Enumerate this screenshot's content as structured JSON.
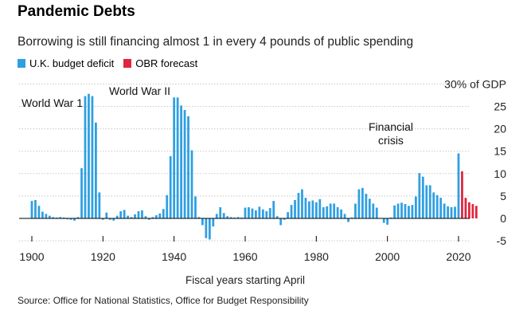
{
  "title": "Pandemic Debts",
  "subtitle": "Borrowing is still financing almost 1 in every 4 pounds of public spending",
  "source": "Source: Office for National Statistics, Office for Budget Responsibility",
  "legend": [
    {
      "label": "U.K. budget deficit",
      "color": "#2f9fe2"
    },
    {
      "label": "OBR forecast",
      "color": "#e0253e"
    }
  ],
  "chart_data": {
    "type": "bar",
    "title": "Pandemic Debts",
    "xlabel": "Fiscal years starting April",
    "ylabel": "30% of GDP",
    "ylim": [
      -5,
      30
    ],
    "xlim": [
      1900,
      2026
    ],
    "x_ticks": [
      "1900",
      "1920",
      "1940",
      "1960",
      "1980",
      "2000",
      "2020"
    ],
    "y_ticks": [
      "30% of GDP",
      "25",
      "20",
      "15",
      "10",
      "5",
      "0",
      "-5"
    ],
    "annotations": [
      {
        "text": "World War 1",
        "year": 1915
      },
      {
        "text": "World War II",
        "year": 1941
      },
      {
        "text": "Financial crisis",
        "year": 2009
      }
    ],
    "series": [
      {
        "name": "U.K. budget deficit",
        "color": "#2f9fe2",
        "x": [
          1900,
          1901,
          1902,
          1903,
          1904,
          1905,
          1906,
          1907,
          1908,
          1909,
          1910,
          1911,
          1912,
          1913,
          1914,
          1915,
          1916,
          1917,
          1918,
          1919,
          1920,
          1921,
          1922,
          1923,
          1924,
          1925,
          1926,
          1927,
          1928,
          1929,
          1930,
          1931,
          1932,
          1933,
          1934,
          1935,
          1936,
          1937,
          1938,
          1939,
          1940,
          1941,
          1942,
          1943,
          1944,
          1945,
          1946,
          1947,
          1948,
          1949,
          1950,
          1951,
          1952,
          1953,
          1954,
          1955,
          1956,
          1957,
          1958,
          1959,
          1960,
          1961,
          1962,
          1963,
          1964,
          1965,
          1966,
          1967,
          1968,
          1969,
          1970,
          1971,
          1972,
          1973,
          1974,
          1975,
          1976,
          1977,
          1978,
          1979,
          1980,
          1981,
          1982,
          1983,
          1984,
          1985,
          1986,
          1987,
          1988,
          1989,
          1990,
          1991,
          1992,
          1993,
          1994,
          1995,
          1996,
          1997,
          1998,
          1999,
          2000,
          2001,
          2002,
          2003,
          2004,
          2005,
          2006,
          2007,
          2008,
          2009,
          2010,
          2011,
          2012,
          2013,
          2014,
          2015,
          2016,
          2017,
          2018,
          2019,
          2020
        ],
        "values": [
          3.9,
          4.1,
          2.8,
          1.5,
          1.0,
          0.6,
          0.3,
          0.2,
          0.3,
          0.2,
          -0.2,
          -0.3,
          -0.5,
          0.3,
          11.2,
          27.3,
          27.8,
          27.3,
          21.4,
          5.8,
          -0.3,
          1.3,
          -0.3,
          -0.5,
          0.6,
          1.6,
          1.9,
          0.6,
          0.3,
          0.9,
          1.6,
          1.8,
          0.5,
          -0.3,
          0.3,
          0.7,
          1.1,
          2.1,
          5.2,
          13.9,
          27.0,
          27.0,
          25.2,
          24.2,
          22.8,
          15.2,
          4.9,
          0.3,
          -1.5,
          -4.4,
          -4.7,
          -1.8,
          1.0,
          2.5,
          1.2,
          0.5,
          0.3,
          0.2,
          0.3,
          0.2,
          2.4,
          2.5,
          2.2,
          1.8,
          2.6,
          2.0,
          1.6,
          2.3,
          3.9,
          0.5,
          -1.5,
          -0.3,
          1.4,
          3.0,
          4.1,
          5.7,
          6.5,
          4.6,
          3.8,
          4.0,
          3.6,
          4.3,
          2.5,
          2.7,
          3.3,
          3.3,
          2.5,
          2.0,
          1.0,
          -0.8,
          0.2,
          3.3,
          6.5,
          6.8,
          5.5,
          4.4,
          3.3,
          2.4,
          0.1,
          -1.0,
          -1.4,
          0.2,
          2.9,
          3.3,
          3.5,
          3.2,
          2.8,
          3.0,
          4.9,
          10.1,
          9.3,
          7.4,
          7.4,
          5.8,
          5.2,
          4.6,
          3.3,
          2.7,
          2.5,
          2.6,
          14.5
        ]
      },
      {
        "name": "OBR forecast",
        "color": "#e0253e",
        "x": [
          2021,
          2022,
          2023,
          2024,
          2025
        ],
        "values": [
          10.5,
          4.6,
          3.6,
          3.2,
          2.8
        ]
      }
    ]
  }
}
